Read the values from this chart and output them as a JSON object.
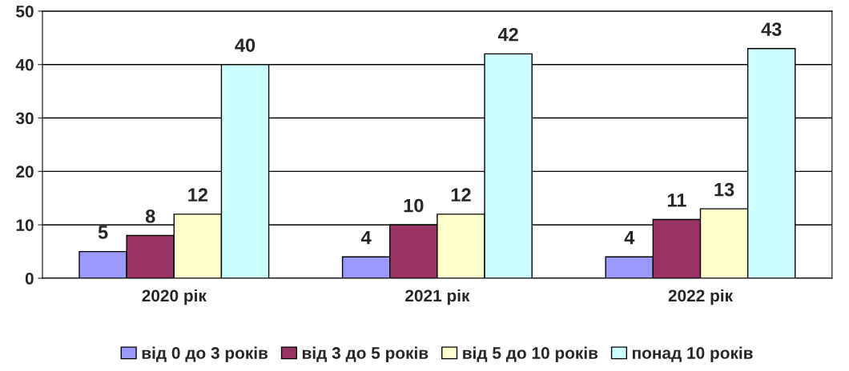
{
  "chart_data": {
    "type": "bar",
    "categories": [
      "2020 рік",
      "2021 рік",
      "2022 рік"
    ],
    "series": [
      {
        "name": "від 0 до 3 років",
        "color": "#9999ff",
        "values": [
          5,
          4,
          4
        ]
      },
      {
        "name": "від 3 до 5 років",
        "color": "#993366",
        "values": [
          8,
          10,
          11
        ]
      },
      {
        "name": "від 5 до 10 років",
        "color": "#ffffcc",
        "values": [
          12,
          12,
          13
        ]
      },
      {
        "name": "понад 10 років",
        "color": "#ccffff",
        "values": [
          40,
          42,
          43
        ]
      }
    ],
    "ylim": [
      0,
      50
    ],
    "yticks": [
      0,
      10,
      20,
      30,
      40,
      50
    ],
    "grid": "y",
    "legend": "bottom",
    "data_labels": true
  }
}
